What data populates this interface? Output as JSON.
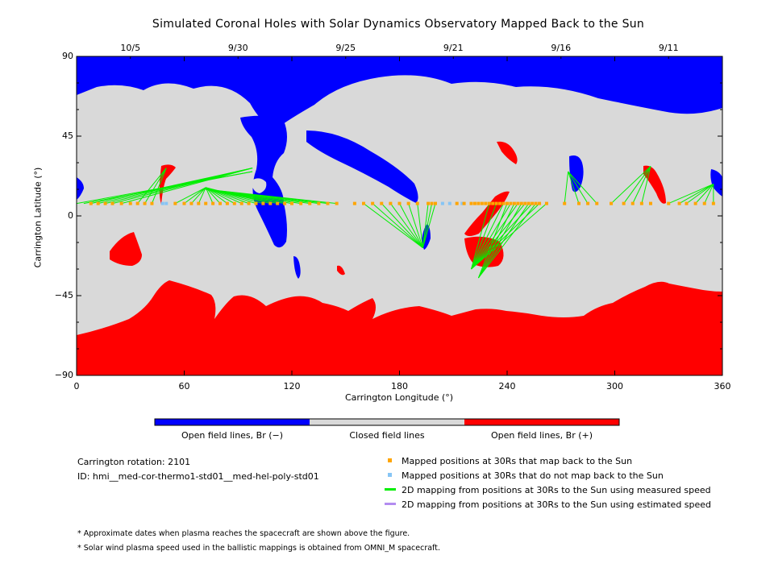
{
  "chart_data": {
    "type": "map",
    "title": "Simulated Coronal Holes with Solar Dynamics Observatory Mapped Back to the Sun",
    "xlabel": "Carrington Longitude (°)",
    "ylabel": "Carrington Latitude (°)",
    "xlim": [
      0,
      360
    ],
    "ylim": [
      -90,
      90
    ],
    "x_ticks": [
      "0",
      "60",
      "120",
      "180",
      "240",
      "300",
      "360"
    ],
    "y_ticks": [
      "90",
      "45",
      "0",
      "−45",
      "−90"
    ],
    "top_dates": [
      {
        "label": "10/5",
        "lon": 30
      },
      {
        "label": "9/30",
        "lon": 90
      },
      {
        "label": "9/25",
        "lon": 150
      },
      {
        "label": "9/21",
        "lon": 210
      },
      {
        "label": "9/16",
        "lon": 270
      },
      {
        "label": "9/11",
        "lon": 330
      }
    ],
    "colors": {
      "open_negative": "#0000ff",
      "closed": "#d9d9d9",
      "open_positive": "#ff0000",
      "mapped_back": "#ffa500",
      "not_mapped_back": "#87c5f5",
      "measured_speed": "#00ee00",
      "estimated_speed": "#b38cf0"
    },
    "mapped_back_longitudes": [
      8,
      12,
      16,
      20,
      25,
      30,
      34,
      38,
      42,
      55,
      60,
      64,
      68,
      72,
      76,
      80,
      84,
      88,
      92,
      96,
      100,
      104,
      108,
      112,
      116,
      120,
      125,
      130,
      135,
      140,
      145,
      155,
      160,
      165,
      170,
      175,
      180,
      185,
      190,
      196,
      198,
      200,
      212,
      216,
      220,
      222,
      224,
      226,
      228,
      230,
      232,
      234,
      236,
      238,
      240,
      242,
      244,
      246,
      248,
      250,
      252,
      254,
      256,
      258,
      262,
      272,
      280,
      285,
      290,
      298,
      305,
      310,
      315,
      320,
      330,
      336,
      340,
      345,
      350,
      355
    ],
    "not_mapped_back_longitudes": [
      20,
      48,
      50,
      204,
      208,
      215
    ],
    "colorbar": {
      "labels": [
        "Open field lines, Br (−)",
        "Closed field lines",
        "Open field lines, Br (+)"
      ]
    }
  },
  "legend": {
    "carrington_rotation": "Carrington rotation: 2101",
    "model_id": "ID: hmi__med-cor-thermo1-std01__med-hel-poly-std01",
    "items": [
      "Mapped positions at 30Rs that map back to the Sun",
      "Mapped positions at 30Rs that do not map back to the Sun",
      "2D mapping from positions at 30Rs to the Sun using measured speed",
      "2D mapping from positions at 30Rs to the Sun using estimated speed"
    ]
  },
  "footnotes": [
    "* Approximate dates when plasma reaches the spacecraft are shown above the figure.",
    "* Solar wind plasma speed used in the ballistic mappings is obtained from OMNI_M spacecraft."
  ]
}
